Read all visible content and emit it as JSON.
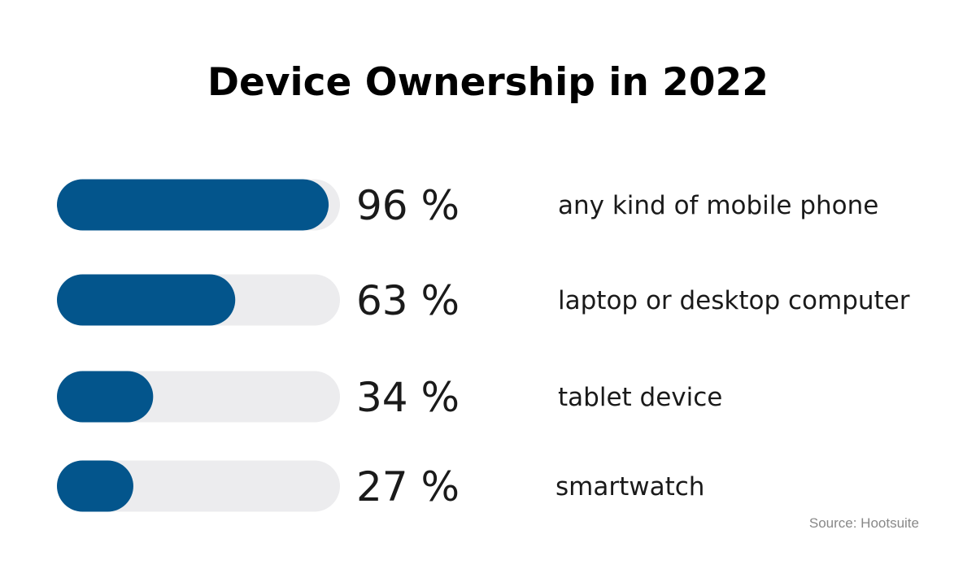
{
  "chart_data": {
    "type": "bar",
    "orientation": "horizontal",
    "title": "Device Ownership in 2022",
    "categories": [
      "any kind of mobile phone",
      "laptop or desktop computer",
      "tablet device",
      "smartwatch"
    ],
    "values": [
      96,
      63,
      34,
      27
    ],
    "value_labels": [
      "96 %",
      "63 %",
      "34 %",
      "27 %"
    ],
    "unit": "%",
    "xlim": [
      0,
      100
    ],
    "source": "Source: Hootsuite",
    "colors": {
      "bar_fill": "#03558c",
      "bar_track": "#ececee",
      "text": "#1a1a1a",
      "source_text": "#888888"
    }
  }
}
